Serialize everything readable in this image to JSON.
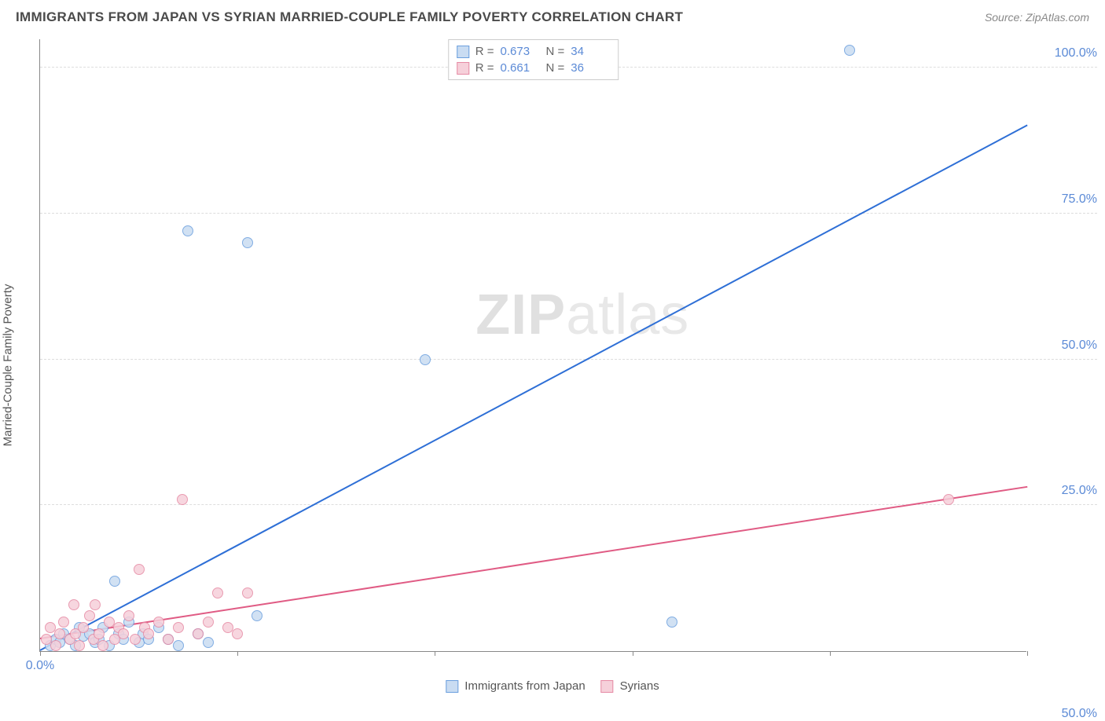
{
  "header": {
    "title": "IMMIGRANTS FROM JAPAN VS SYRIAN MARRIED-COUPLE FAMILY POVERTY CORRELATION CHART",
    "source": "Source: ZipAtlas.com"
  },
  "chart": {
    "type": "scatter",
    "ylabel": "Married-Couple Family Poverty",
    "watermark_zip": "ZIP",
    "watermark_rest": "atlas",
    "background_color": "#ffffff",
    "grid_color": "#dddddd",
    "axis_color": "#888888",
    "xlim": [
      0,
      50
    ],
    "ylim": [
      0,
      105
    ],
    "xticks": [
      0,
      10,
      20,
      30,
      40,
      50
    ],
    "xtick_labels": [
      "0.0%",
      "",
      "",
      "",
      "",
      "50.0%"
    ],
    "yticks": [
      25,
      50,
      75,
      100
    ],
    "ytick_labels": [
      "25.0%",
      "50.0%",
      "75.0%",
      "100.0%"
    ],
    "series": [
      {
        "name": "Immigrants from Japan",
        "color_fill": "#c9dcf2",
        "color_stroke": "#6b9fde",
        "r_label": "R =",
        "r_value": "0.673",
        "n_label": "N =",
        "n_value": "34",
        "marker_radius": 7,
        "regression": {
          "x1": 0,
          "y1": 0,
          "x2": 50,
          "y2": 90,
          "color": "#2e6fd6",
          "width": 2
        },
        "points": [
          [
            0.5,
            1
          ],
          [
            0.8,
            2
          ],
          [
            1.0,
            1.5
          ],
          [
            1.2,
            3
          ],
          [
            1.5,
            2
          ],
          [
            1.8,
            1
          ],
          [
            2.0,
            4
          ],
          [
            2.2,
            2.5
          ],
          [
            2.5,
            3
          ],
          [
            2.8,
            1.5
          ],
          [
            3.0,
            2
          ],
          [
            3.2,
            4
          ],
          [
            3.5,
            1
          ],
          [
            3.8,
            12
          ],
          [
            4.0,
            3
          ],
          [
            4.2,
            2
          ],
          [
            4.5,
            5
          ],
          [
            5.0,
            1.5
          ],
          [
            5.2,
            3
          ],
          [
            5.5,
            2
          ],
          [
            6.0,
            4
          ],
          [
            6.5,
            2
          ],
          [
            7.0,
            1
          ],
          [
            7.5,
            72
          ],
          [
            8.0,
            3
          ],
          [
            8.5,
            1.5
          ],
          [
            10.5,
            70
          ],
          [
            11.0,
            6
          ],
          [
            19.5,
            50
          ],
          [
            32.0,
            5
          ],
          [
            41.0,
            103
          ]
        ]
      },
      {
        "name": "Syrians",
        "color_fill": "#f6d0da",
        "color_stroke": "#e68aa4",
        "r_label": "R =",
        "r_value": "0.661",
        "n_label": "N =",
        "n_value": "36",
        "marker_radius": 7,
        "regression": {
          "x1": 0,
          "y1": 2,
          "x2": 50,
          "y2": 28,
          "color": "#e05b84",
          "width": 2
        },
        "points": [
          [
            0.3,
            2
          ],
          [
            0.5,
            4
          ],
          [
            0.8,
            1
          ],
          [
            1.0,
            3
          ],
          [
            1.2,
            5
          ],
          [
            1.5,
            2
          ],
          [
            1.7,
            8
          ],
          [
            1.8,
            3
          ],
          [
            2.0,
            1
          ],
          [
            2.2,
            4
          ],
          [
            2.5,
            6
          ],
          [
            2.7,
            2
          ],
          [
            2.8,
            8
          ],
          [
            3.0,
            3
          ],
          [
            3.2,
            1
          ],
          [
            3.5,
            5
          ],
          [
            3.8,
            2
          ],
          [
            4.0,
            4
          ],
          [
            4.2,
            3
          ],
          [
            4.5,
            6
          ],
          [
            4.8,
            2
          ],
          [
            5.0,
            14
          ],
          [
            5.3,
            4
          ],
          [
            5.5,
            3
          ],
          [
            6.0,
            5
          ],
          [
            6.5,
            2
          ],
          [
            7.0,
            4
          ],
          [
            7.2,
            26
          ],
          [
            8.0,
            3
          ],
          [
            8.5,
            5
          ],
          [
            9.0,
            10
          ],
          [
            9.5,
            4
          ],
          [
            10.0,
            3
          ],
          [
            10.5,
            10
          ],
          [
            46.0,
            26
          ]
        ]
      }
    ]
  }
}
